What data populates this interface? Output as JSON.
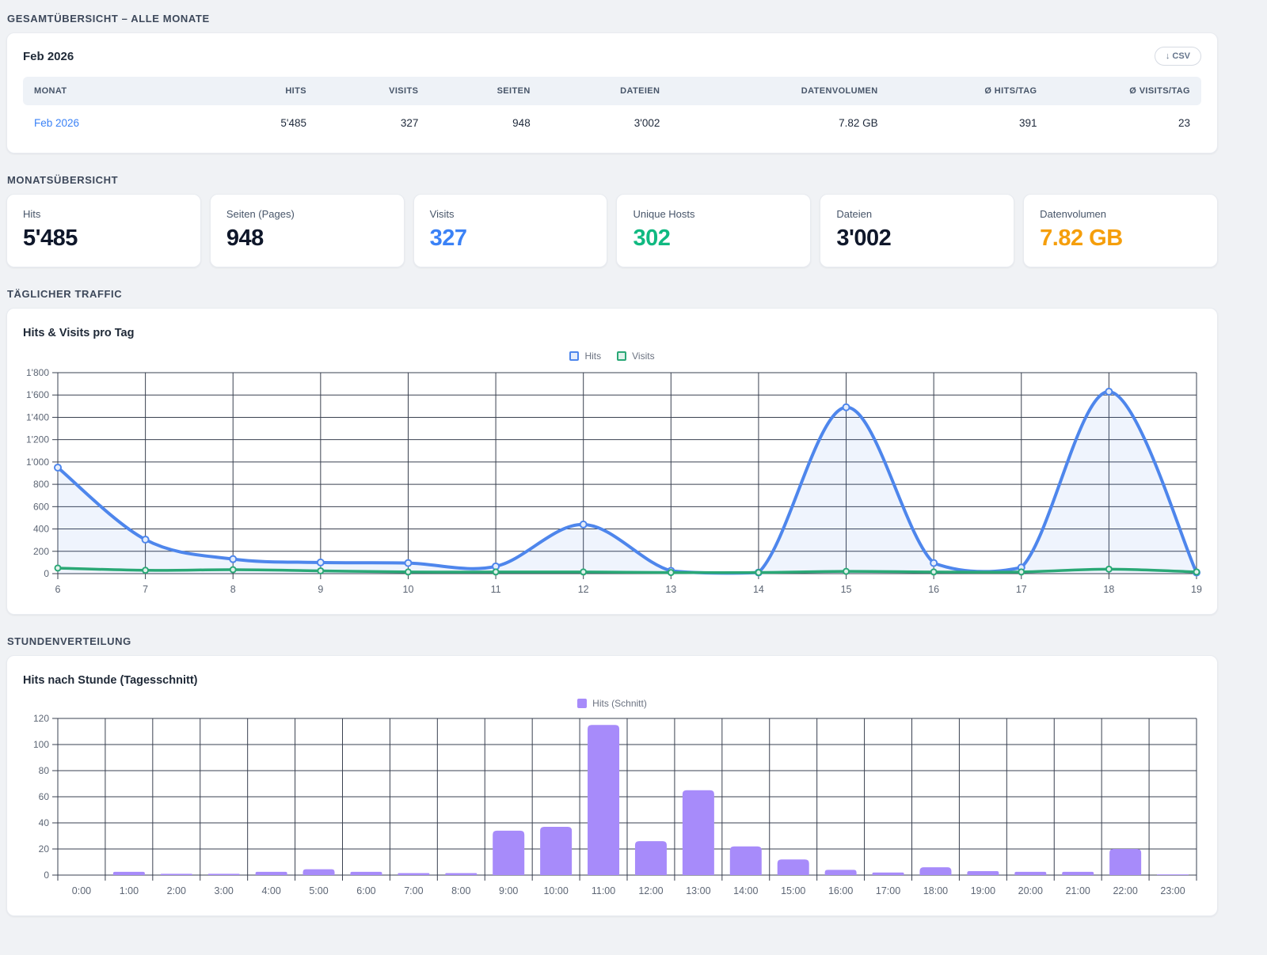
{
  "sections": {
    "overview_title": "GESAMTÜBERSICHT – ALLE MONATE",
    "monthly_title": "MONATSÜBERSICHT",
    "daily_title": "TÄGLICHER TRAFFIC",
    "hourly_title": "STUNDENVERTEILUNG"
  },
  "overview_card": {
    "title": "Feb 2026",
    "csv_button": "↓ CSV",
    "columns": [
      "MONAT",
      "HITS",
      "VISITS",
      "SEITEN",
      "DATEIEN",
      "DATENVOLUMEN",
      "Ø HITS/TAG",
      "Ø VISITS/TAG"
    ],
    "rows": [
      [
        "Feb 2026",
        "5'485",
        "327",
        "948",
        "3'002",
        "7.82 GB",
        "391",
        "23"
      ]
    ]
  },
  "stat_cards": [
    {
      "label": "Hits",
      "value": "5'485",
      "color": "#0f172a"
    },
    {
      "label": "Seiten (Pages)",
      "value": "948",
      "color": "#0f172a"
    },
    {
      "label": "Visits",
      "value": "327",
      "color": "#3b82f6"
    },
    {
      "label": "Unique Hosts",
      "value": "302",
      "color": "#10b981"
    },
    {
      "label": "Dateien",
      "value": "3'002",
      "color": "#0f172a"
    },
    {
      "label": "Datenvolumen",
      "value": "7.82 GB",
      "color": "#f59e0b"
    }
  ],
  "chart_data": [
    {
      "type": "line",
      "title": "Hits & Visits pro Tag",
      "x": [
        6,
        7,
        8,
        9,
        10,
        11,
        12,
        13,
        14,
        15,
        16,
        17,
        18,
        19
      ],
      "series": [
        {
          "name": "Hits",
          "color": "#4e86ec",
          "fill": "rgba(78,134,236,0.09)",
          "values": [
            950,
            305,
            130,
            100,
            95,
            65,
            440,
            25,
            10,
            1490,
            95,
            55,
            1630,
            10
          ]
        },
        {
          "name": "Visits",
          "color": "#2aa876",
          "fill": null,
          "values": [
            50,
            30,
            35,
            25,
            15,
            15,
            15,
            10,
            10,
            20,
            15,
            15,
            40,
            15
          ]
        }
      ],
      "ylim": [
        0,
        1800
      ],
      "ytick_step": 200,
      "grid": true,
      "legend_position": "top"
    },
    {
      "type": "bar",
      "title": "Hits nach Stunde (Tagesschnitt)",
      "categories": [
        "0:00",
        "1:00",
        "2:00",
        "3:00",
        "4:00",
        "5:00",
        "6:00",
        "7:00",
        "8:00",
        "9:00",
        "10:00",
        "11:00",
        "12:00",
        "13:00",
        "14:00",
        "15:00",
        "16:00",
        "17:00",
        "18:00",
        "19:00",
        "20:00",
        "21:00",
        "22:00",
        "23:00"
      ],
      "series": [
        {
          "name": "Hits (Schnitt)",
          "color": "#a78bfa",
          "values": [
            0,
            2.5,
            1,
            1,
            2.5,
            4.5,
            2.5,
            1.5,
            1.5,
            34,
            37,
            115,
            26,
            65,
            22,
            12,
            4,
            2,
            6,
            3,
            2.5,
            2.5,
            20,
            0.5
          ]
        }
      ],
      "ylim": [
        0,
        120
      ],
      "ytick_step": 20,
      "grid": true,
      "legend_position": "top"
    }
  ]
}
